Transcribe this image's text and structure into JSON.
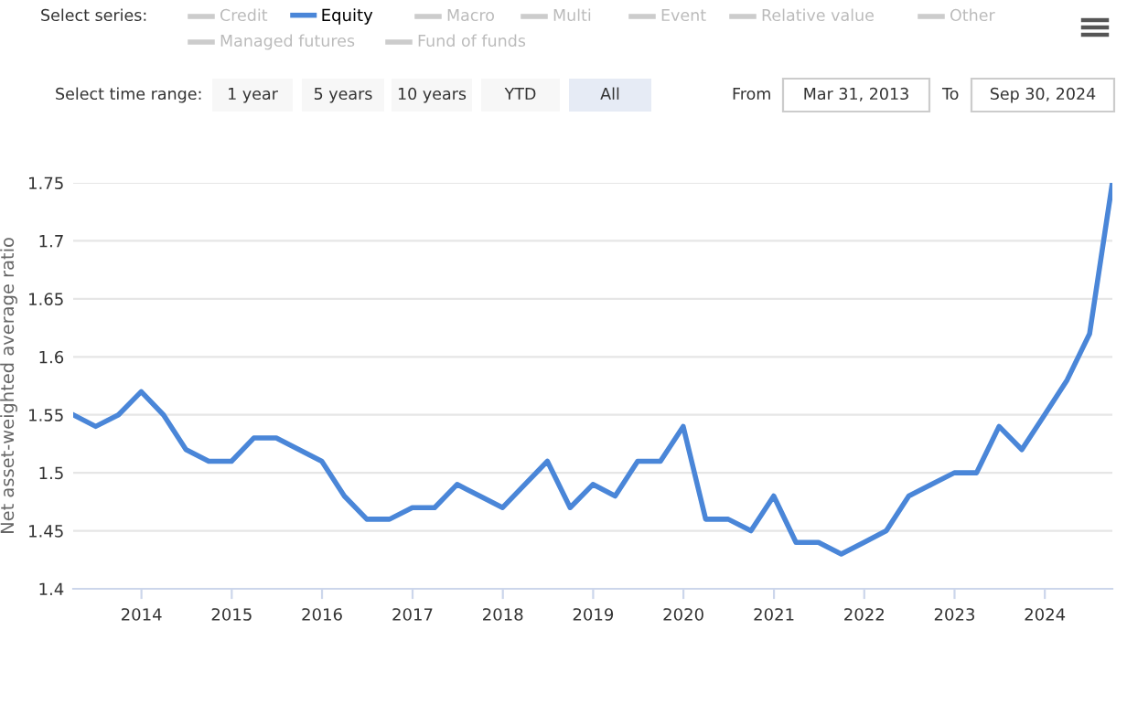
{
  "chart_data": {
    "type": "line",
    "ylabel": "Net asset-weighted average ratio",
    "x": [
      "2013-03-31",
      "2013-06-30",
      "2013-09-30",
      "2013-12-31",
      "2014-03-31",
      "2014-06-30",
      "2014-09-30",
      "2014-12-31",
      "2015-03-31",
      "2015-06-30",
      "2015-09-30",
      "2015-12-31",
      "2016-03-31",
      "2016-06-30",
      "2016-09-30",
      "2016-12-31",
      "2017-03-31",
      "2017-06-30",
      "2017-09-30",
      "2017-12-31",
      "2018-03-31",
      "2018-06-30",
      "2018-09-30",
      "2018-12-31",
      "2019-03-31",
      "2019-06-30",
      "2019-09-30",
      "2019-12-31",
      "2020-03-31",
      "2020-06-30",
      "2020-09-30",
      "2020-12-31",
      "2021-03-31",
      "2021-06-30",
      "2021-09-30",
      "2021-12-31",
      "2022-03-31",
      "2022-06-30",
      "2022-09-30",
      "2022-12-31",
      "2023-03-31",
      "2023-06-30",
      "2023-09-30",
      "2023-12-31",
      "2024-03-31",
      "2024-06-30",
      "2024-09-30"
    ],
    "series": [
      {
        "name": "Equity",
        "color": "#4a86d8",
        "values": [
          1.55,
          1.54,
          1.55,
          1.57,
          1.55,
          1.52,
          1.51,
          1.51,
          1.53,
          1.53,
          1.52,
          1.51,
          1.48,
          1.46,
          1.46,
          1.47,
          1.47,
          1.49,
          1.48,
          1.47,
          1.49,
          1.51,
          1.47,
          1.49,
          1.48,
          1.51,
          1.51,
          1.54,
          1.46,
          1.46,
          1.45,
          1.48,
          1.44,
          1.44,
          1.43,
          1.44,
          1.45,
          1.48,
          1.49,
          1.5,
          1.5,
          1.54,
          1.52,
          1.55,
          1.58,
          1.62,
          1.75
        ]
      }
    ],
    "xlim": [
      "2013-03-31",
      "2024-09-30"
    ],
    "xticks": [
      {
        "value": "2014-01-01",
        "label": "2014"
      },
      {
        "value": "2015-01-01",
        "label": "2015"
      },
      {
        "value": "2016-01-01",
        "label": "2016"
      },
      {
        "value": "2017-01-01",
        "label": "2017"
      },
      {
        "value": "2018-01-01",
        "label": "2018"
      },
      {
        "value": "2019-01-01",
        "label": "2019"
      },
      {
        "value": "2020-01-01",
        "label": "2020"
      },
      {
        "value": "2021-01-01",
        "label": "2021"
      },
      {
        "value": "2022-01-01",
        "label": "2022"
      },
      {
        "value": "2023-01-01",
        "label": "2023"
      },
      {
        "value": "2024-01-01",
        "label": "2024"
      }
    ],
    "ylim": [
      1.4,
      1.75
    ],
    "yticks": [
      1.4,
      1.45,
      1.5,
      1.55,
      1.6,
      1.65,
      1.7,
      1.75
    ],
    "grid": "y",
    "legend": "top",
    "marker": "none",
    "line_style": "solid",
    "annotations": [
      "Select series:",
      "Credit",
      "Macro",
      "Multi",
      "Event",
      "Relative value",
      "Other",
      "Managed futures",
      "Fund of funds",
      "Select time range:",
      "1 year",
      "5 years",
      "10 years",
      "YTD",
      "All",
      "From",
      "Mar 31, 2013",
      "To",
      "Sep 30, 2024"
    ]
  }
}
